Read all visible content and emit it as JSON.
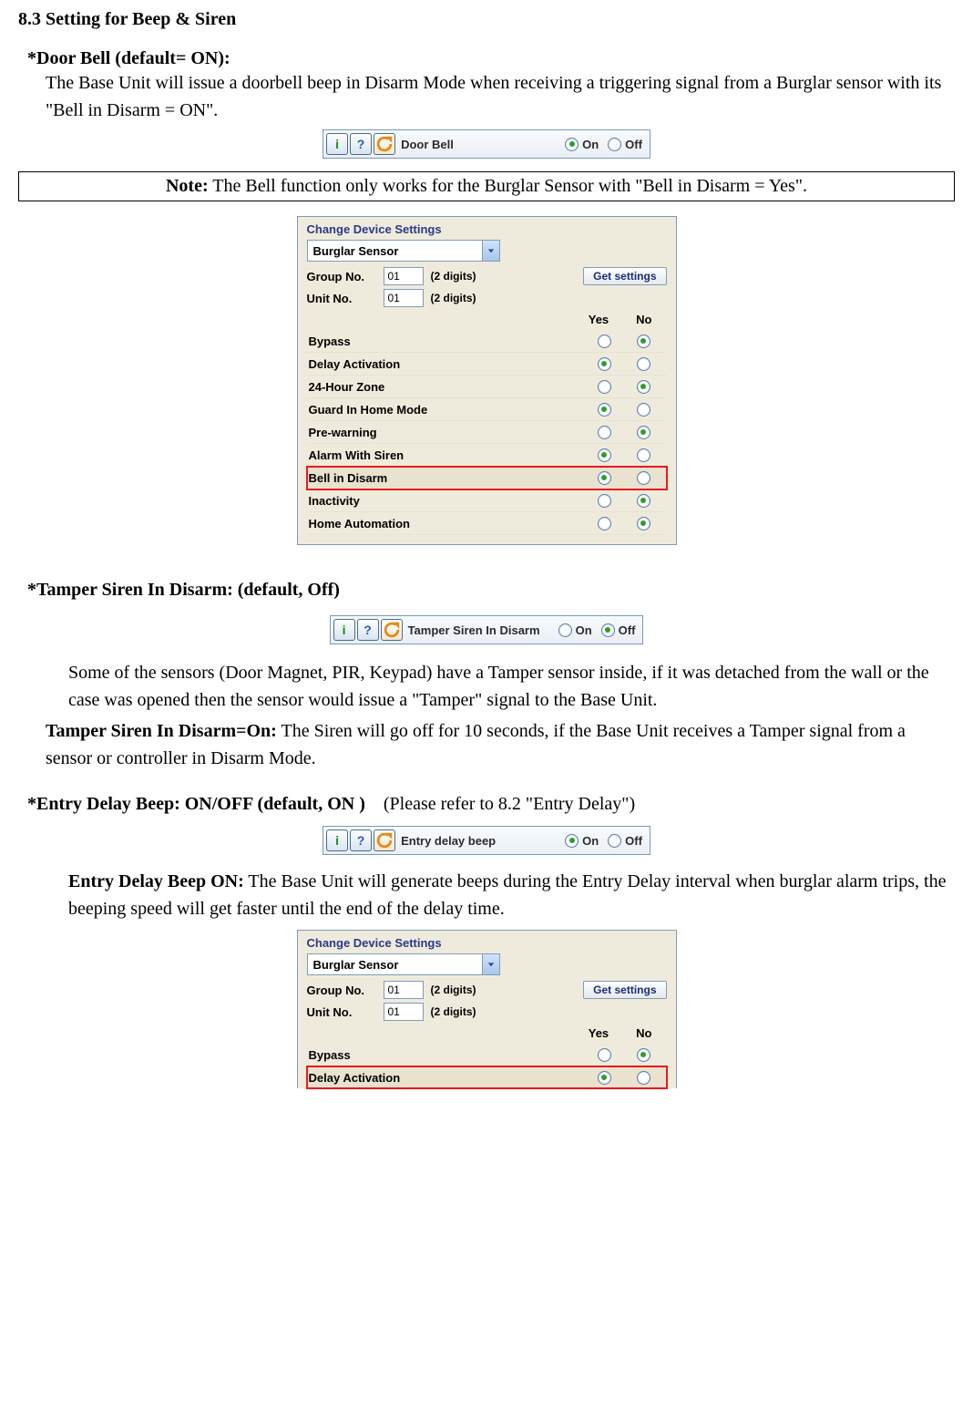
{
  "section_title": "8.3 Setting for Beep & Siren",
  "doorbell": {
    "heading": "*Door Bell (default= ON):",
    "body": "The Base Unit will issue a doorbell beep in Disarm Mode when receiving a triggering signal from a Burglar sensor with its \"Bell in Disarm = ON\".",
    "cfg_label": "Door Bell",
    "on_label": "On",
    "off_label": "Off",
    "selected": "on"
  },
  "note": {
    "prefix": "Note:",
    "text": " The Bell function only works for the Burglar Sensor with \"Bell in Disarm = Yes\"."
  },
  "panel1": {
    "title": "Change Device Settings",
    "combo_value": "Burglar Sensor",
    "group_label": "Group No.",
    "group_value": "01",
    "digits_hint": "(2 digits)",
    "unit_label": "Unit No.",
    "unit_value": "01",
    "get_btn": "Get settings",
    "yes": "Yes",
    "no": "No",
    "rows": [
      {
        "label": "Bypass",
        "val": "no"
      },
      {
        "label": "Delay Activation",
        "val": "yes"
      },
      {
        "label": "24-Hour Zone",
        "val": "no"
      },
      {
        "label": "Guard In Home Mode",
        "val": "yes"
      },
      {
        "label": "Pre-warning",
        "val": "no"
      },
      {
        "label": "Alarm With Siren",
        "val": "yes"
      },
      {
        "label": "Bell in Disarm",
        "val": "yes",
        "highlight": true
      },
      {
        "label": "Inactivity",
        "val": "no"
      },
      {
        "label": "Home Automation",
        "val": "no"
      }
    ]
  },
  "tamper": {
    "heading": "*Tamper Siren In Disarm: (default, Off)",
    "cfg_label": "Tamper Siren In Disarm",
    "on_label": "On",
    "off_label": "Off",
    "selected": "off",
    "body1": "Some of the sensors (Door Magnet, PIR, Keypad) have a Tamper sensor inside, if it was detached from the wall or the case was opened then the sensor would issue a \"Tamper\" signal to the Base Unit.",
    "body2_prefix": "Tamper Siren In Disarm=On:",
    "body2": " The Siren will go off for 10 seconds, if the Base Unit receives a Tamper signal from a sensor or controller in Disarm Mode."
  },
  "entry": {
    "heading": "*Entry Delay Beep: ON/OFF (default, ON )",
    "refer": "(Please refer to 8.2 \"Entry Delay\")",
    "cfg_label": "Entry delay beep",
    "on_label": "On",
    "off_label": "Off",
    "selected": "on",
    "body_prefix": "Entry Delay Beep ON:",
    "body": " The Base Unit will generate beeps during the Entry Delay interval when burglar alarm trips, the beeping speed will get faster until the end of the delay time."
  },
  "panel2": {
    "title": "Change Device Settings",
    "combo_value": "Burglar Sensor",
    "group_label": "Group No.",
    "group_value": "01",
    "digits_hint": "(2 digits)",
    "unit_label": "Unit No.",
    "unit_value": "01",
    "get_btn": "Get settings",
    "yes": "Yes",
    "no": "No",
    "rows": [
      {
        "label": "Bypass",
        "val": "no"
      },
      {
        "label": "Delay Activation",
        "val": "yes",
        "highlight": true
      }
    ]
  }
}
